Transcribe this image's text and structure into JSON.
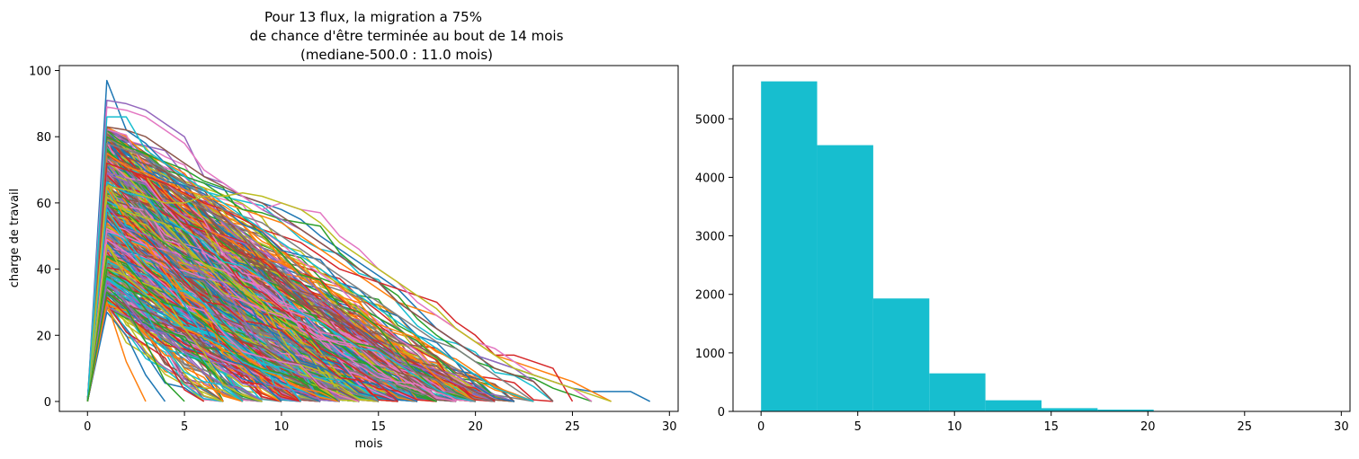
{
  "chart_data": [
    {
      "type": "line",
      "title": [
        "Pour 13 flux, la migration a 75%",
        "de chance d'être terminée au bout de 14 mois",
        "(mediane-500.0 : 11.0 mois)"
      ],
      "xlabel": "mois",
      "ylabel": "charge de travail",
      "xlim": [
        -1.45,
        30.45
      ],
      "ylim": [
        -3,
        101.5
      ],
      "xticks": [
        0,
        5,
        10,
        15,
        20,
        25,
        30
      ],
      "yticks": [
        0,
        20,
        40,
        60,
        80,
        100
      ],
      "grid": false,
      "legend": "none",
      "series_count_estimate": 500,
      "series_colors": [
        "#1f77b4",
        "#ff7f0e",
        "#2ca02c",
        "#d62728",
        "#9467bd",
        "#8c564b",
        "#e377c2",
        "#7f7f7f",
        "#bcbd22",
        "#17becf"
      ],
      "series": [
        {
          "x": [
            0,
            1,
            2,
            3,
            4,
            5,
            6,
            7,
            8,
            9,
            10,
            11,
            12,
            13,
            14,
            15,
            16,
            17,
            18,
            19,
            20,
            21,
            22,
            23,
            24,
            25,
            26,
            27,
            28,
            29
          ],
          "values": [
            0,
            97,
            82,
            78,
            72,
            68,
            66,
            64,
            62,
            60,
            58,
            55,
            50,
            46,
            42,
            38,
            34,
            28,
            22,
            18,
            14,
            12,
            10,
            8,
            6,
            4,
            3,
            3,
            3,
            0
          ]
        },
        {
          "x": [
            0,
            1,
            2,
            3,
            4,
            5,
            6,
            7,
            8,
            9,
            10,
            11,
            12,
            13,
            14,
            15,
            16,
            17,
            18,
            19,
            20,
            21,
            22,
            23,
            24,
            25,
            26,
            27
          ],
          "values": [
            0,
            75,
            71,
            69,
            66,
            64,
            62,
            60,
            58,
            56,
            54,
            50,
            46,
            42,
            38,
            34,
            30,
            28,
            26,
            22,
            18,
            14,
            12,
            10,
            8,
            6,
            3,
            0
          ]
        },
        {
          "x": [
            0,
            1,
            2,
            3,
            4,
            5,
            6,
            7,
            8,
            9,
            10,
            11,
            12,
            13,
            14,
            15,
            16,
            17,
            18,
            19,
            20,
            21,
            22,
            23,
            24,
            25,
            26
          ],
          "values": [
            0,
            80,
            77,
            75,
            70,
            68,
            66,
            62,
            58,
            57,
            55,
            54,
            53,
            45,
            40,
            36,
            32,
            25,
            20,
            16,
            12,
            10,
            8,
            7,
            4,
            2,
            0
          ]
        },
        {
          "x": [
            0,
            1,
            2,
            3,
            4,
            5,
            6,
            7,
            8,
            9,
            10,
            11,
            12,
            13,
            14,
            15,
            16,
            17,
            18,
            19,
            20,
            21,
            22,
            23,
            24,
            25
          ],
          "values": [
            0,
            72,
            70,
            68,
            66,
            63,
            60,
            58,
            55,
            52,
            50,
            48,
            44,
            40,
            38,
            36,
            34,
            32,
            30,
            24,
            20,
            14,
            14,
            12,
            10,
            0
          ]
        },
        {
          "x": [
            0,
            1,
            2,
            3,
            4,
            5,
            6,
            7,
            8,
            9,
            10,
            11,
            12,
            13,
            14,
            15,
            16,
            17,
            18,
            19,
            20,
            21,
            22,
            23,
            24
          ],
          "values": [
            0,
            91,
            90,
            88,
            84,
            80,
            68,
            66,
            62,
            58,
            55,
            52,
            48,
            44,
            40,
            36,
            30,
            26,
            22,
            18,
            14,
            12,
            10,
            6,
            0
          ]
        },
        {
          "x": [
            0,
            1,
            2,
            3,
            4,
            5,
            6,
            7,
            8,
            9,
            10,
            11,
            12,
            13,
            14,
            15,
            16,
            17,
            18,
            19,
            20,
            21,
            22,
            23,
            24
          ],
          "values": [
            0,
            83,
            82,
            80,
            76,
            72,
            68,
            65,
            62,
            60,
            56,
            52,
            48,
            44,
            40,
            36,
            30,
            26,
            22,
            18,
            14,
            10,
            8,
            6,
            0
          ]
        },
        {
          "x": [
            0,
            1,
            2,
            3,
            4,
            5,
            6,
            7,
            8,
            9,
            10,
            11,
            12,
            13,
            14,
            15,
            16,
            17,
            18,
            19,
            20,
            21,
            22,
            23,
            24,
            25,
            26
          ],
          "values": [
            0,
            89,
            88,
            86,
            82,
            78,
            70,
            66,
            62,
            58,
            60,
            58,
            57,
            50,
            46,
            40,
            36,
            30,
            26,
            22,
            18,
            16,
            12,
            8,
            6,
            4,
            0
          ]
        },
        {
          "x": [
            0,
            1,
            2,
            3,
            4,
            5,
            6,
            7,
            8,
            9,
            10,
            11,
            12,
            13,
            14,
            15,
            16,
            17,
            18,
            19,
            20,
            21,
            22,
            23
          ],
          "values": [
            0,
            78,
            76,
            74,
            70,
            66,
            62,
            58,
            56,
            54,
            50,
            46,
            42,
            38,
            34,
            30,
            26,
            22,
            18,
            16,
            12,
            8,
            4,
            0
          ]
        },
        {
          "x": [
            0,
            1,
            2,
            3,
            4,
            5,
            6,
            7,
            8,
            9,
            10,
            11,
            12,
            13,
            14,
            15,
            16,
            17,
            18,
            19,
            20,
            21,
            22,
            23,
            24,
            25,
            26,
            27
          ],
          "values": [
            0,
            65,
            64,
            62,
            60,
            60,
            62,
            62,
            63,
            62,
            60,
            58,
            54,
            48,
            44,
            40,
            36,
            32,
            28,
            22,
            18,
            14,
            10,
            8,
            6,
            4,
            2,
            0
          ]
        },
        {
          "x": [
            0,
            1,
            2,
            3,
            4,
            5,
            6,
            7,
            8,
            9,
            10,
            11,
            12,
            13,
            14,
            15,
            16,
            17,
            18,
            19,
            20,
            21,
            22,
            23
          ],
          "values": [
            0,
            86,
            86,
            76,
            72,
            68,
            64,
            60,
            56,
            52,
            48,
            44,
            40,
            36,
            32,
            28,
            24,
            20,
            16,
            12,
            8,
            4,
            2,
            0
          ]
        },
        {
          "x": [
            0,
            1,
            2,
            3,
            4
          ],
          "values": [
            0,
            27,
            20,
            8,
            0
          ]
        },
        {
          "x": [
            0,
            1,
            2,
            3
          ],
          "values": [
            0,
            30,
            12,
            0
          ]
        },
        {
          "x": [
            0,
            1,
            2,
            3,
            4,
            5
          ],
          "values": [
            0,
            33,
            28,
            18,
            6,
            0
          ]
        }
      ]
    },
    {
      "type": "bar",
      "title": "",
      "xlabel": "",
      "ylabel": "",
      "xlim": [
        -1.45,
        30.45
      ],
      "ylim": [
        0,
        5910
      ],
      "xticks": [
        0,
        5,
        10,
        15,
        20,
        25,
        30
      ],
      "yticks": [
        0,
        1000,
        2000,
        3000,
        4000,
        5000
      ],
      "grid": false,
      "color": "#17becf",
      "bin_edges": [
        0,
        2.9,
        5.8,
        8.7,
        11.6,
        14.5,
        17.4,
        20.3,
        23.2,
        26.1,
        29
      ],
      "values": [
        5640,
        4550,
        1930,
        650,
        190,
        55,
        30,
        8,
        3,
        2
      ]
    }
  ]
}
